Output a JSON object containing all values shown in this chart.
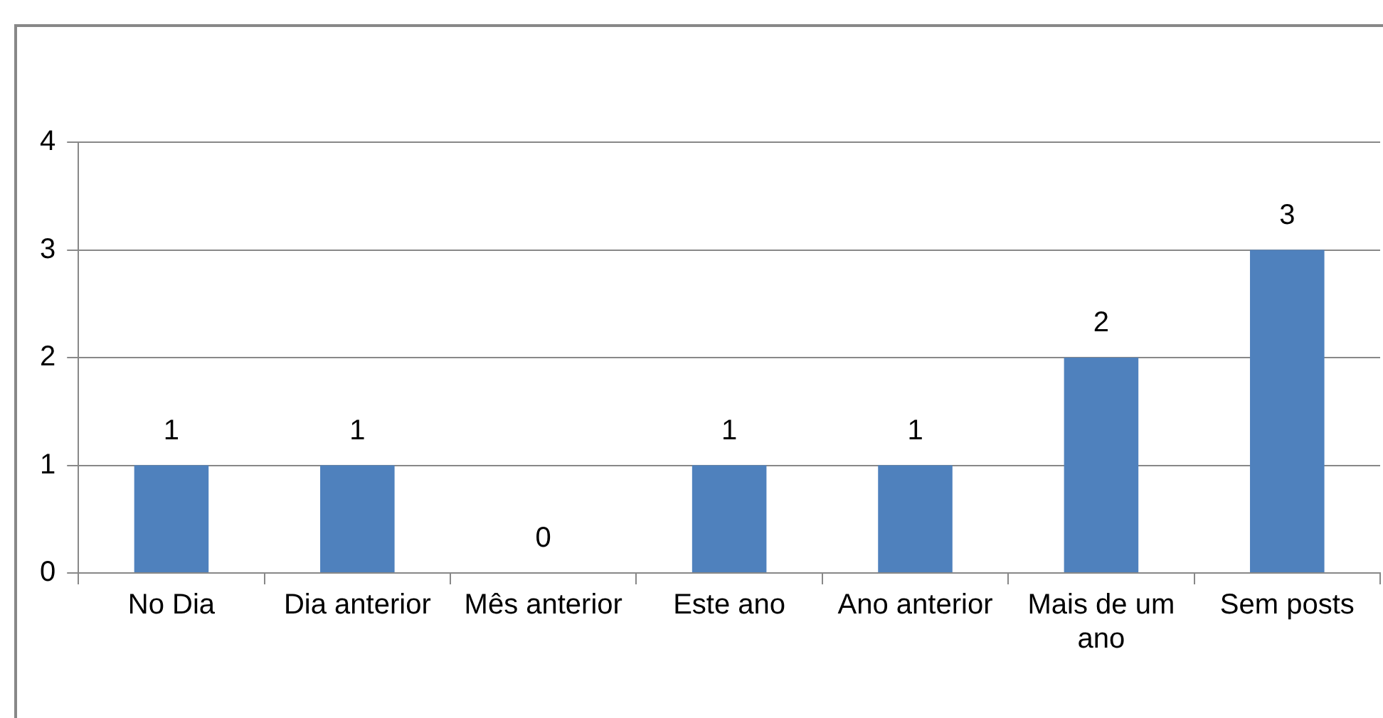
{
  "chart_data": {
    "type": "bar",
    "categories": [
      "No Dia",
      "Dia anterior",
      "Mês anterior",
      "Este ano",
      "Ano anterior",
      "Mais de um ano",
      "Sem posts"
    ],
    "values": [
      1,
      1,
      0,
      1,
      1,
      2,
      3
    ],
    "color": "#4f81bd",
    "ylim": [
      0,
      4
    ],
    "yticks": [
      0,
      1,
      2,
      3,
      4
    ],
    "grid": "y",
    "data_labels": true,
    "legend": false
  }
}
